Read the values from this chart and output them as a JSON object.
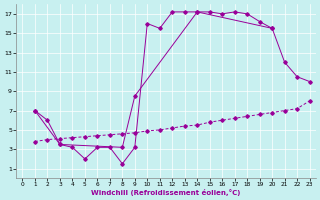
{
  "xlabel": "Windchill (Refroidissement éolien,°C)",
  "bg_color": "#c8f0f0",
  "line_color": "#990099",
  "grid_color": "#ffffff",
  "border_color": "#888888",
  "ylim": [
    0,
    18
  ],
  "xlim": [
    -0.5,
    23.5
  ],
  "yticks": [
    1,
    3,
    5,
    7,
    9,
    11,
    13,
    15,
    17
  ],
  "xticks": [
    0,
    1,
    2,
    3,
    4,
    5,
    6,
    7,
    8,
    9,
    10,
    11,
    12,
    13,
    14,
    15,
    16,
    17,
    18,
    19,
    20,
    21,
    22,
    23
  ],
  "line1_x": [
    1,
    2,
    3,
    4,
    5,
    6,
    7,
    8,
    9,
    10,
    11,
    12,
    13,
    14,
    15,
    16,
    17,
    18,
    19,
    20
  ],
  "line1_y": [
    7.0,
    6.0,
    3.5,
    3.2,
    2.0,
    3.2,
    3.2,
    1.5,
    3.2,
    16.0,
    15.5,
    17.2,
    17.2,
    17.2,
    17.2,
    17.0,
    17.2,
    17.0,
    16.2,
    15.5
  ],
  "line2_x": [
    1,
    2,
    3,
    4,
    5,
    6,
    7,
    8,
    9,
    10,
    11,
    12,
    13,
    14,
    15,
    16,
    17,
    18,
    19,
    20,
    21,
    22,
    23
  ],
  "line2_y": [
    3.8,
    4.0,
    4.1,
    4.2,
    4.3,
    4.4,
    4.5,
    4.6,
    4.7,
    4.9,
    5.0,
    5.2,
    5.4,
    5.5,
    5.8,
    6.0,
    6.2,
    6.4,
    6.6,
    6.8,
    7.0,
    7.2,
    8.0
  ],
  "line3_x": [
    1,
    3,
    8,
    9,
    14,
    20,
    21,
    22,
    23
  ],
  "line3_y": [
    7.0,
    3.5,
    3.2,
    8.5,
    17.2,
    15.5,
    12.0,
    10.5,
    10.0
  ]
}
